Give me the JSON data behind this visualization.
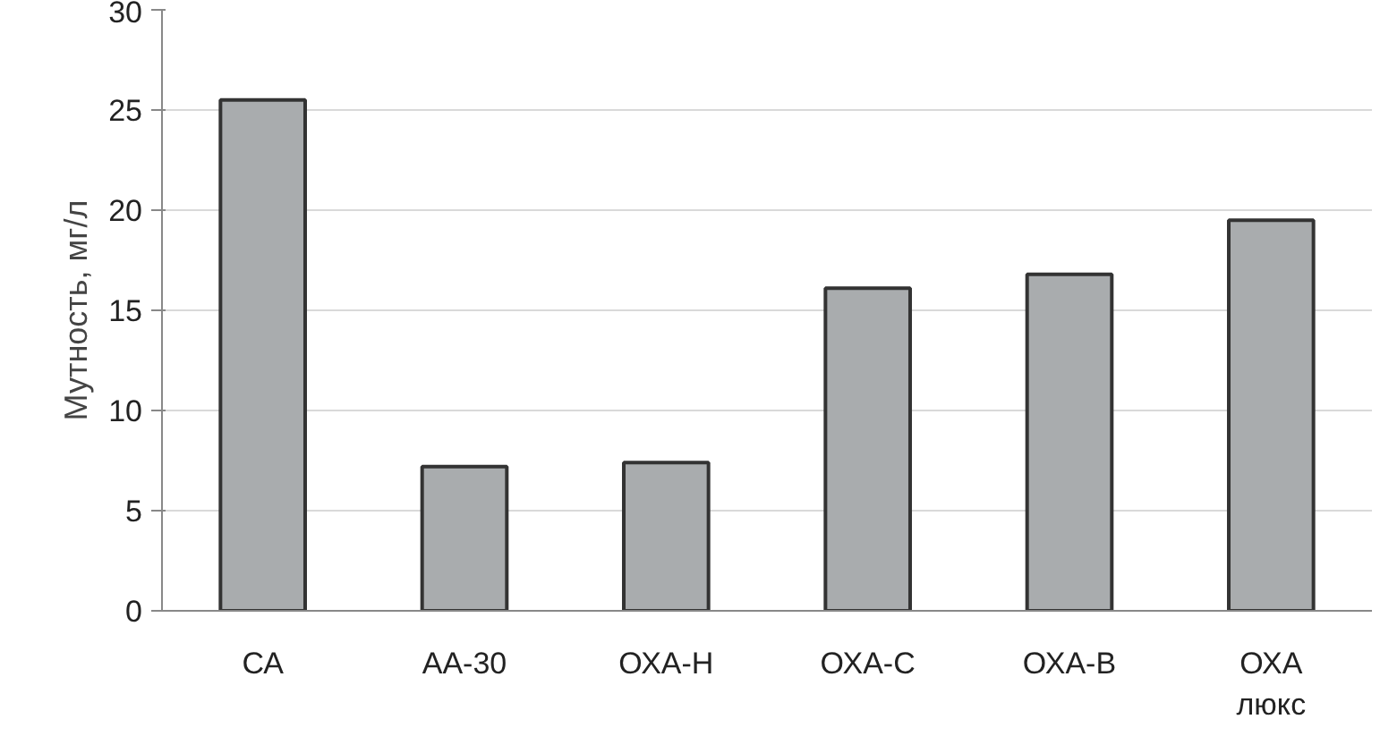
{
  "chart_data": {
    "type": "bar",
    "ylabel": "Мутность, мг/л",
    "categories": [
      "СА",
      "АА-30",
      "ОХА-Н",
      "ОХА-С",
      "ОХА-В",
      "ОХА люкс"
    ],
    "values": [
      25.5,
      7.2,
      7.4,
      16.1,
      16.8,
      19.5
    ],
    "color": "#a9acae",
    "ylim": [
      0,
      30
    ],
    "yticks": [
      0,
      5,
      10,
      15,
      20,
      25,
      30
    ],
    "grid": "y"
  }
}
